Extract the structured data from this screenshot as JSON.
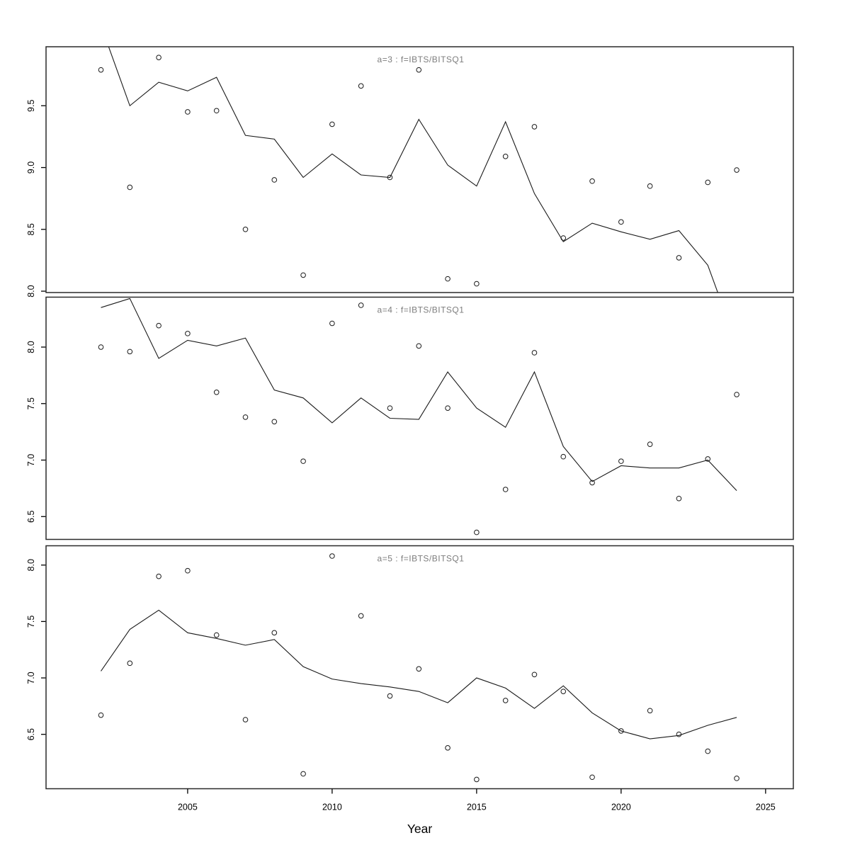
{
  "figure": {
    "background": "#ffffff",
    "box_color": "#2a2a2a",
    "line_color": "#1a1a1a",
    "point_color": "#1a1a1a",
    "title_color": "#7d7d7d",
    "tick_label_color": "#000000"
  },
  "chart_data": {
    "type": "line",
    "xlabel": "Year",
    "x": [
      2002,
      2003,
      2004,
      2005,
      2006,
      2007,
      2008,
      2009,
      2010,
      2011,
      2012,
      2013,
      2014,
      2015,
      2016,
      2017,
      2018,
      2019,
      2020,
      2021,
      2022,
      2023,
      2024
    ],
    "xlim": [
      2000.1,
      2025.96
    ],
    "x_ticks": [
      2005,
      2010,
      2015,
      2020,
      2025
    ],
    "grid": "off",
    "legend": "none",
    "marker": "open-circle",
    "panels": [
      {
        "title": "a=3 : f=IBTS/BITSQ1",
        "ylim": [
          7.989,
          9.977
        ],
        "y_ticks": [
          8.0,
          8.5,
          9.0,
          9.5
        ],
        "series": [
          {
            "name": "observed-points",
            "type": "scatter",
            "values": [
              9.79,
              8.84,
              9.89,
              9.45,
              9.46,
              8.5,
              8.9,
              8.13,
              9.35,
              9.66,
              8.92,
              9.79,
              8.1,
              8.06,
              9.09,
              9.33,
              8.43,
              8.89,
              8.56,
              8.85,
              8.27,
              8.88,
              8.98
            ]
          },
          {
            "name": "fitted-line",
            "type": "line",
            "values": [
              10.15,
              9.5,
              9.69,
              9.62,
              9.73,
              9.26,
              9.23,
              8.92,
              9.11,
              8.94,
              8.92,
              9.39,
              9.02,
              8.85,
              9.37,
              8.79,
              8.4,
              8.55,
              8.48,
              8.42,
              8.49,
              8.21,
              7.57
            ]
          }
        ]
      },
      {
        "title": "a=4 : f=IBTS/BITSQ1",
        "ylim": [
          6.298,
          8.442
        ],
        "y_ticks": [
          6.5,
          7.0,
          7.5,
          8.0
        ],
        "series": [
          {
            "name": "observed-points",
            "type": "scatter",
            "values": [
              8.0,
              7.96,
              8.19,
              8.12,
              7.6,
              7.38,
              7.34,
              6.99,
              8.21,
              8.37,
              7.46,
              8.01,
              7.46,
              6.36,
              6.74,
              7.95,
              7.03,
              6.8,
              6.99,
              7.14,
              6.66,
              7.01,
              7.58
            ]
          },
          {
            "name": "fitted-line",
            "type": "line",
            "values": [
              8.35,
              8.43,
              7.9,
              8.06,
              8.01,
              8.08,
              7.62,
              7.55,
              7.33,
              7.55,
              7.37,
              7.36,
              7.78,
              7.46,
              7.29,
              7.78,
              7.12,
              6.81,
              6.95,
              6.93,
              6.93,
              7.0,
              6.73
            ]
          }
        ]
      },
      {
        "title": "a=5 : f=IBTS/BITSQ1",
        "ylim": [
          6.018,
          8.171
        ],
        "y_ticks": [
          6.5,
          7.0,
          7.5,
          8.0
        ],
        "series": [
          {
            "name": "observed-points",
            "type": "scatter",
            "values": [
              6.67,
              7.13,
              7.9,
              7.95,
              7.38,
              6.63,
              7.4,
              6.15,
              8.08,
              7.55,
              6.84,
              7.08,
              6.38,
              6.1,
              6.8,
              7.03,
              6.88,
              6.12,
              6.53,
              6.71,
              6.5,
              6.35,
              6.11
            ]
          },
          {
            "name": "fitted-line",
            "type": "line",
            "values": [
              7.06,
              7.43,
              7.6,
              7.4,
              7.35,
              7.29,
              7.34,
              7.1,
              6.99,
              6.95,
              6.92,
              6.88,
              6.78,
              7.0,
              6.91,
              6.73,
              6.93,
              6.69,
              6.53,
              6.46,
              6.49,
              6.58,
              6.65
            ]
          }
        ]
      }
    ]
  }
}
